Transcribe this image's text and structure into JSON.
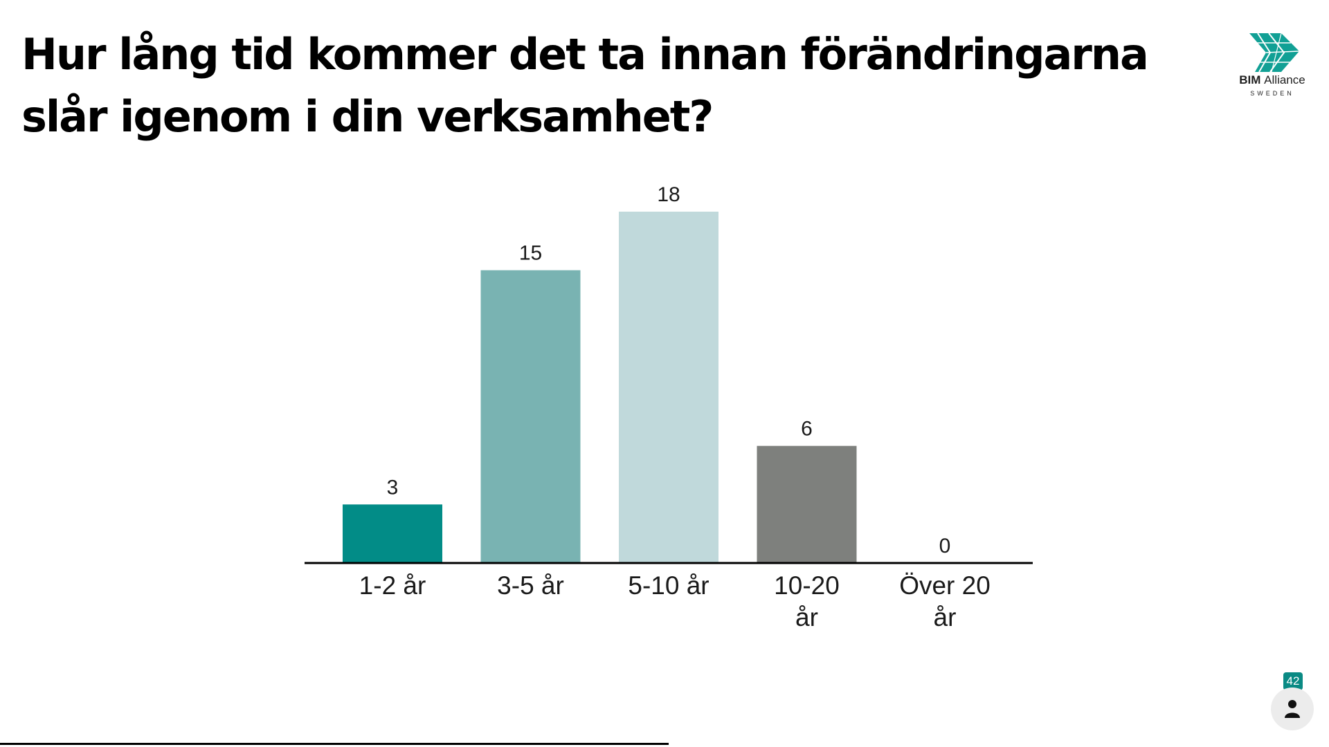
{
  "slide": {
    "title": "Hur lång tid kommer det ta innan förändringarna slår igenom i din verksamhet?"
  },
  "logo": {
    "name_bold": "BIM",
    "name_light": "Alliance",
    "sub": "SWEDEN",
    "icon": "bim-alliance-logo-icon",
    "color": "#11A095"
  },
  "participants": {
    "count": "42",
    "icon": "person-icon",
    "badge_color": "#0A8A84"
  },
  "chart_data": {
    "type": "bar",
    "title": "",
    "xlabel": "",
    "ylabel": "",
    "categories": [
      [
        "1-2 år"
      ],
      [
        "3-5 år"
      ],
      [
        "5-10 år"
      ],
      [
        "10-20",
        "år"
      ],
      [
        "Över 20",
        "år"
      ]
    ],
    "values": [
      3,
      15,
      18,
      6,
      0
    ],
    "colors": [
      "#028C87",
      "#79B3B2",
      "#C0D9DB",
      "#7E807D",
      "#CFCFCF"
    ],
    "ylim": [
      0,
      18
    ],
    "grid": false,
    "legend": "none"
  }
}
